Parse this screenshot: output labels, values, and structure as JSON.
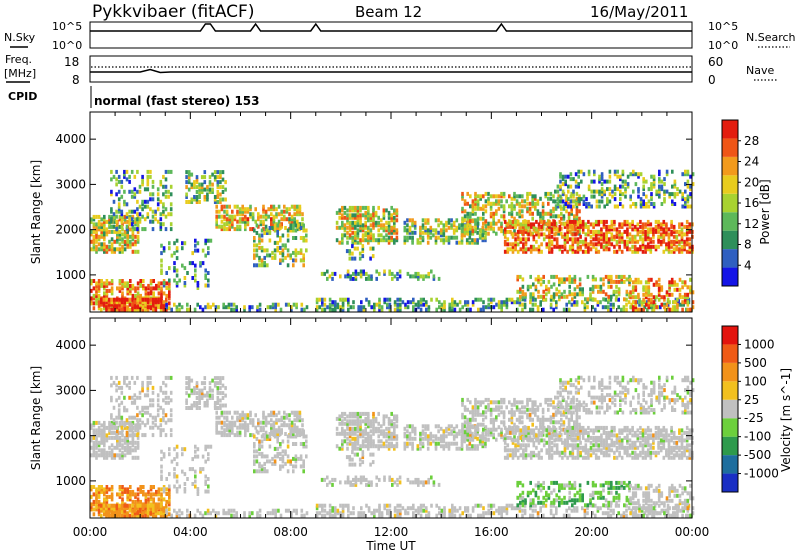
{
  "header": {
    "station": "Pykkvibaer (fitACF)",
    "beam": "Beam 12",
    "date": "16/May/2011"
  },
  "top_panels": {
    "nsky_label": "N.Sky",
    "nsearch_label": "N.Search",
    "nsky_ticks": [
      "10^5",
      "10^0"
    ],
    "nsearch_ticks": [
      "10^5",
      "10^0"
    ],
    "freq_label": "Freq.",
    "freq_unit": "[MHz]",
    "freq_ticks": [
      "18",
      "8"
    ],
    "nave_label": "Nave",
    "nave_ticks": [
      "60",
      "0"
    ],
    "cpid_label": "CPID",
    "cpid_text": "normal (fast stereo) 153"
  },
  "chart_data": [
    {
      "type": "heatmap",
      "name": "power",
      "ylabel": "Slant Range [km]",
      "yticks": [
        1000,
        2000,
        3000,
        4000
      ],
      "ylim": [
        180,
        4600
      ],
      "xlim_hours": [
        0,
        24
      ],
      "colorbar_label": "Power [dB]",
      "colorbar_ticks": [
        "4",
        "8",
        "12",
        "16",
        "20",
        "24",
        "28"
      ],
      "colorbar_colors": [
        "#1414e6",
        "#2f5fc0",
        "#2e8f5a",
        "#5db85a",
        "#a8d230",
        "#e8cc1e",
        "#f29a1c",
        "#ef5516",
        "#e31c0e"
      ]
    },
    {
      "type": "heatmap",
      "name": "velocity",
      "xlabel": "Time UT",
      "ylabel": "Slant Range [km]",
      "yticks": [
        1000,
        2000,
        3000,
        4000
      ],
      "ylim": [
        180,
        4600
      ],
      "xlim_hours": [
        0,
        24
      ],
      "xticks": [
        "00:00",
        "04:00",
        "08:00",
        "12:00",
        "16:00",
        "20:00",
        "00:00"
      ],
      "colorbar_label": "Velocity [m s^-1]",
      "colorbar_ticks": [
        "1000",
        "500",
        "100",
        "25",
        "-25",
        "-100",
        "-500",
        "-1000"
      ],
      "colorbar_colors": [
        "#1a2fc4",
        "#1e6e9e",
        "#2e9a4c",
        "#6ccf3c",
        "#c0c0c0",
        "#f2c01e",
        "#f2921a",
        "#ef5a16",
        "#e3140e"
      ]
    }
  ]
}
